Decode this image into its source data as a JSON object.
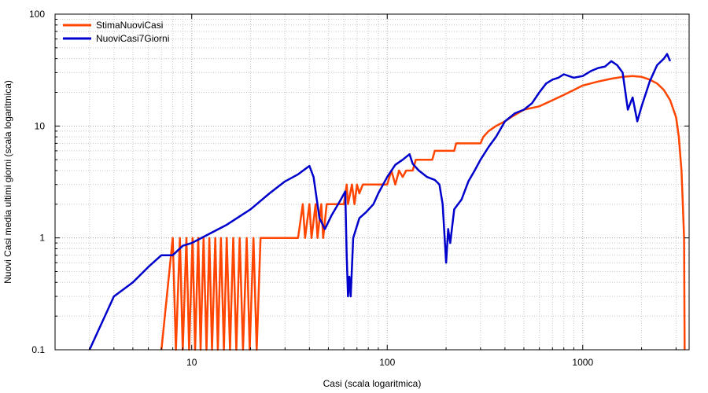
{
  "chart_data": {
    "type": "line",
    "xscale": "log",
    "yscale": "log",
    "xlim": [
      2,
      3500
    ],
    "ylim": [
      0.1,
      100
    ],
    "xlabel": "Casi (scala logaritmica)",
    "ylabel": "Nuovi Casi media ultimi giorni (scala logaritmica)",
    "x_ticks": [
      {
        "value": 10,
        "label": "10"
      },
      {
        "value": 100,
        "label": "100"
      },
      {
        "value": 1000,
        "label": "1000"
      }
    ],
    "y_ticks": [
      {
        "value": 0.1,
        "label": "0.1"
      },
      {
        "value": 1,
        "label": "1"
      },
      {
        "value": 10,
        "label": "10"
      },
      {
        "value": 100,
        "label": "100"
      }
    ],
    "grid": true,
    "legend_position": "top-left",
    "series": [
      {
        "name": "StimaNuoviCasi",
        "color": "#ff4500",
        "points": [
          [
            7,
            0.1
          ],
          [
            8,
            1
          ],
          [
            8.3,
            0.1
          ],
          [
            8.7,
            1
          ],
          [
            9,
            0.1
          ],
          [
            9.4,
            1
          ],
          [
            9.7,
            0.1
          ],
          [
            10.1,
            1
          ],
          [
            10.4,
            0.1
          ],
          [
            10.8,
            1
          ],
          [
            11.1,
            0.1
          ],
          [
            11.5,
            1
          ],
          [
            11.9,
            0.1
          ],
          [
            12.3,
            1
          ],
          [
            12.7,
            0.1
          ],
          [
            13.2,
            1
          ],
          [
            13.6,
            0.1
          ],
          [
            14.1,
            1
          ],
          [
            14.6,
            0.1
          ],
          [
            15.1,
            1
          ],
          [
            15.7,
            0.1
          ],
          [
            16.3,
            1
          ],
          [
            16.9,
            0.1
          ],
          [
            17.6,
            1
          ],
          [
            18.3,
            0.1
          ],
          [
            19.1,
            1
          ],
          [
            19.8,
            0.1
          ],
          [
            20.7,
            1
          ],
          [
            21.5,
            0.1
          ],
          [
            22.5,
            1
          ],
          [
            35,
            1
          ],
          [
            37,
            2
          ],
          [
            38,
            1
          ],
          [
            40,
            2
          ],
          [
            41,
            1
          ],
          [
            43,
            2
          ],
          [
            44,
            1
          ],
          [
            46,
            2
          ],
          [
            47,
            1
          ],
          [
            49,
            2
          ],
          [
            60,
            2
          ],
          [
            62,
            3
          ],
          [
            63,
            2
          ],
          [
            66,
            3
          ],
          [
            68,
            2
          ],
          [
            70,
            3
          ],
          [
            72,
            2.5
          ],
          [
            75,
            3
          ],
          [
            100,
            3
          ],
          [
            105,
            4
          ],
          [
            110,
            3
          ],
          [
            115,
            4
          ],
          [
            120,
            3.5
          ],
          [
            125,
            4
          ],
          [
            135,
            4
          ],
          [
            140,
            5
          ],
          [
            170,
            5
          ],
          [
            175,
            6
          ],
          [
            220,
            6
          ],
          [
            225,
            7
          ],
          [
            300,
            7
          ],
          [
            310,
            8
          ],
          [
            330,
            9
          ],
          [
            360,
            10
          ],
          [
            400,
            11
          ],
          [
            430,
            12
          ],
          [
            500,
            14
          ],
          [
            600,
            15
          ],
          [
            700,
            17
          ],
          [
            800,
            19
          ],
          [
            900,
            21
          ],
          [
            1000,
            23
          ],
          [
            1200,
            25
          ],
          [
            1400,
            26.5
          ],
          [
            1600,
            27.5
          ],
          [
            1800,
            28
          ],
          [
            2000,
            27.5
          ],
          [
            2200,
            26
          ],
          [
            2400,
            24
          ],
          [
            2600,
            21
          ],
          [
            2800,
            17
          ],
          [
            3000,
            12
          ],
          [
            3100,
            8
          ],
          [
            3200,
            4
          ],
          [
            3250,
            2
          ],
          [
            3300,
            1
          ],
          [
            3320,
            0.1
          ]
        ]
      },
      {
        "name": "NuoviCasi7Giorni",
        "color": "#0000cc",
        "points": [
          [
            3,
            0.1
          ],
          [
            4,
            0.3
          ],
          [
            5,
            0.4
          ],
          [
            6,
            0.55
          ],
          [
            7,
            0.7
          ],
          [
            8,
            0.7
          ],
          [
            9,
            0.85
          ],
          [
            10,
            0.9
          ],
          [
            15,
            1.3
          ],
          [
            20,
            1.8
          ],
          [
            25,
            2.5
          ],
          [
            30,
            3.2
          ],
          [
            35,
            3.7
          ],
          [
            40,
            4.4
          ],
          [
            42,
            3.5
          ],
          [
            45,
            1.5
          ],
          [
            48,
            1.2
          ],
          [
            52,
            1.6
          ],
          [
            57,
            2.1
          ],
          [
            61,
            2.6
          ],
          [
            62,
            0.7
          ],
          [
            63,
            0.3
          ],
          [
            64,
            0.45
          ],
          [
            65,
            0.3
          ],
          [
            67,
            1.0
          ],
          [
            72,
            1.5
          ],
          [
            78,
            1.7
          ],
          [
            85,
            2.0
          ],
          [
            90,
            2.5
          ],
          [
            100,
            3.5
          ],
          [
            110,
            4.5
          ],
          [
            120,
            5.0
          ],
          [
            130,
            5.6
          ],
          [
            135,
            4.6
          ],
          [
            145,
            4.0
          ],
          [
            160,
            3.5
          ],
          [
            175,
            3.3
          ],
          [
            185,
            3.0
          ],
          [
            192,
            2.0
          ],
          [
            200,
            0.6
          ],
          [
            205,
            1.2
          ],
          [
            210,
            0.9
          ],
          [
            220,
            1.8
          ],
          [
            240,
            2.2
          ],
          [
            260,
            3.2
          ],
          [
            280,
            4.0
          ],
          [
            300,
            5.0
          ],
          [
            330,
            6.5
          ],
          [
            360,
            8.0
          ],
          [
            400,
            11
          ],
          [
            450,
            13
          ],
          [
            500,
            14
          ],
          [
            550,
            16
          ],
          [
            600,
            20
          ],
          [
            650,
            24
          ],
          [
            700,
            26
          ],
          [
            750,
            27
          ],
          [
            800,
            29
          ],
          [
            900,
            27
          ],
          [
            1000,
            28
          ],
          [
            1100,
            31
          ],
          [
            1200,
            33
          ],
          [
            1300,
            34
          ],
          [
            1400,
            38
          ],
          [
            1500,
            35
          ],
          [
            1600,
            30
          ],
          [
            1700,
            14
          ],
          [
            1800,
            18
          ],
          [
            1900,
            11
          ],
          [
            2000,
            15
          ],
          [
            2200,
            25
          ],
          [
            2400,
            35
          ],
          [
            2600,
            40
          ],
          [
            2700,
            44
          ],
          [
            2800,
            38
          ]
        ]
      }
    ]
  }
}
